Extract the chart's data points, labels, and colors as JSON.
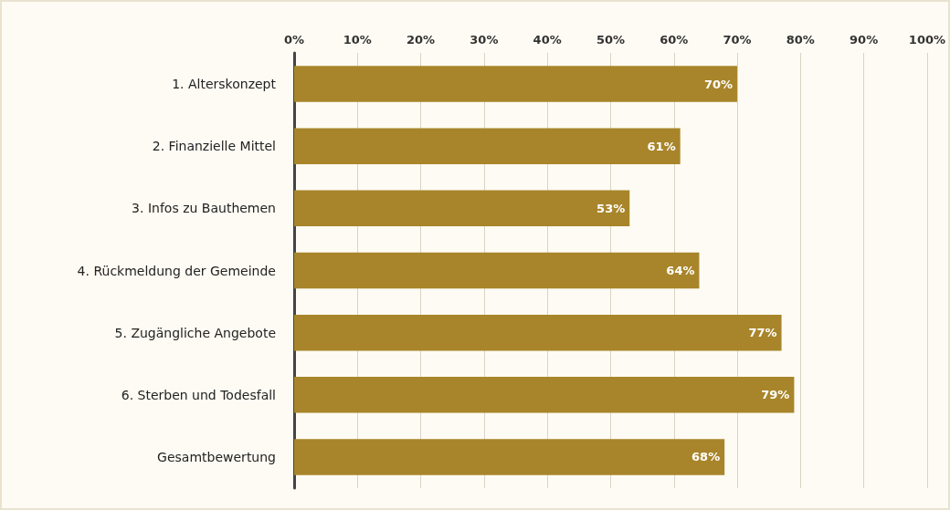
{
  "chart_data": {
    "type": "bar",
    "orientation": "horizontal",
    "categories": [
      "1. Alterskonzept",
      "2. Finanzielle Mittel",
      "3. Infos zu Bauthemen",
      "4. Rückmeldung der Gemeinde",
      "5. Zugängliche Angebote",
      "6. Sterben und Todesfall",
      "Gesamtbewertung"
    ],
    "values": [
      70,
      61,
      53,
      64,
      77,
      79,
      68
    ],
    "value_labels": [
      "70%",
      "61%",
      "53%",
      "64%",
      "77%",
      "79%",
      "68%"
    ],
    "color": "#a8852a",
    "xlim": [
      0,
      100
    ],
    "xticks": [
      {
        "value": 0,
        "label": "0%"
      },
      {
        "value": 10,
        "label": "10%"
      },
      {
        "value": 20,
        "label": "20%"
      },
      {
        "value": 30,
        "label": "30%"
      },
      {
        "value": 40,
        "label": "40%"
      },
      {
        "value": 50,
        "label": "50%"
      },
      {
        "value": 60,
        "label": "60%"
      },
      {
        "value": 70,
        "label": "70%"
      },
      {
        "value": 80,
        "label": "80%"
      },
      {
        "value": 90,
        "label": "90%"
      },
      {
        "value": 100,
        "label": "100%"
      }
    ],
    "grid": "x"
  }
}
